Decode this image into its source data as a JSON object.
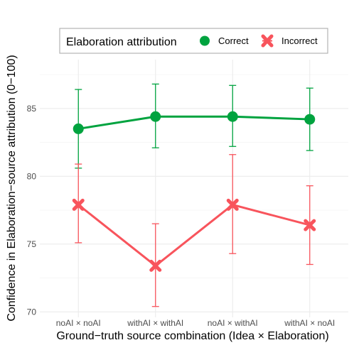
{
  "chart_data": {
    "type": "line",
    "title": "",
    "xlabel": "Ground−truth source combination (Idea × Elaboration)",
    "ylabel": "Confidence in Elaboration−source attribution (0−100)",
    "categories": [
      "noAI × noAI",
      "withAI × withAI",
      "noAI × withAI",
      "withAI × noAI"
    ],
    "ylim": [
      69.6,
      88.6
    ],
    "yticks": [
      70,
      75,
      80,
      85
    ],
    "grid": true,
    "error_bars": true,
    "legend": {
      "title": "Elaboration attribution",
      "position": "top"
    },
    "series": [
      {
        "name": "Correct",
        "color": "#00a33f",
        "marker": "circle",
        "values": [
          83.5,
          84.4,
          84.4,
          84.2
        ],
        "err_low": [
          80.6,
          82.1,
          82.2,
          81.9
        ],
        "err_high": [
          86.4,
          86.8,
          86.7,
          86.5
        ]
      },
      {
        "name": "Incorrect",
        "color": "#f8545c",
        "marker": "x",
        "values": [
          77.9,
          73.4,
          77.9,
          76.4
        ],
        "err_low": [
          75.1,
          70.4,
          74.3,
          73.5
        ],
        "err_high": [
          80.9,
          76.5,
          81.6,
          79.3
        ]
      }
    ]
  }
}
